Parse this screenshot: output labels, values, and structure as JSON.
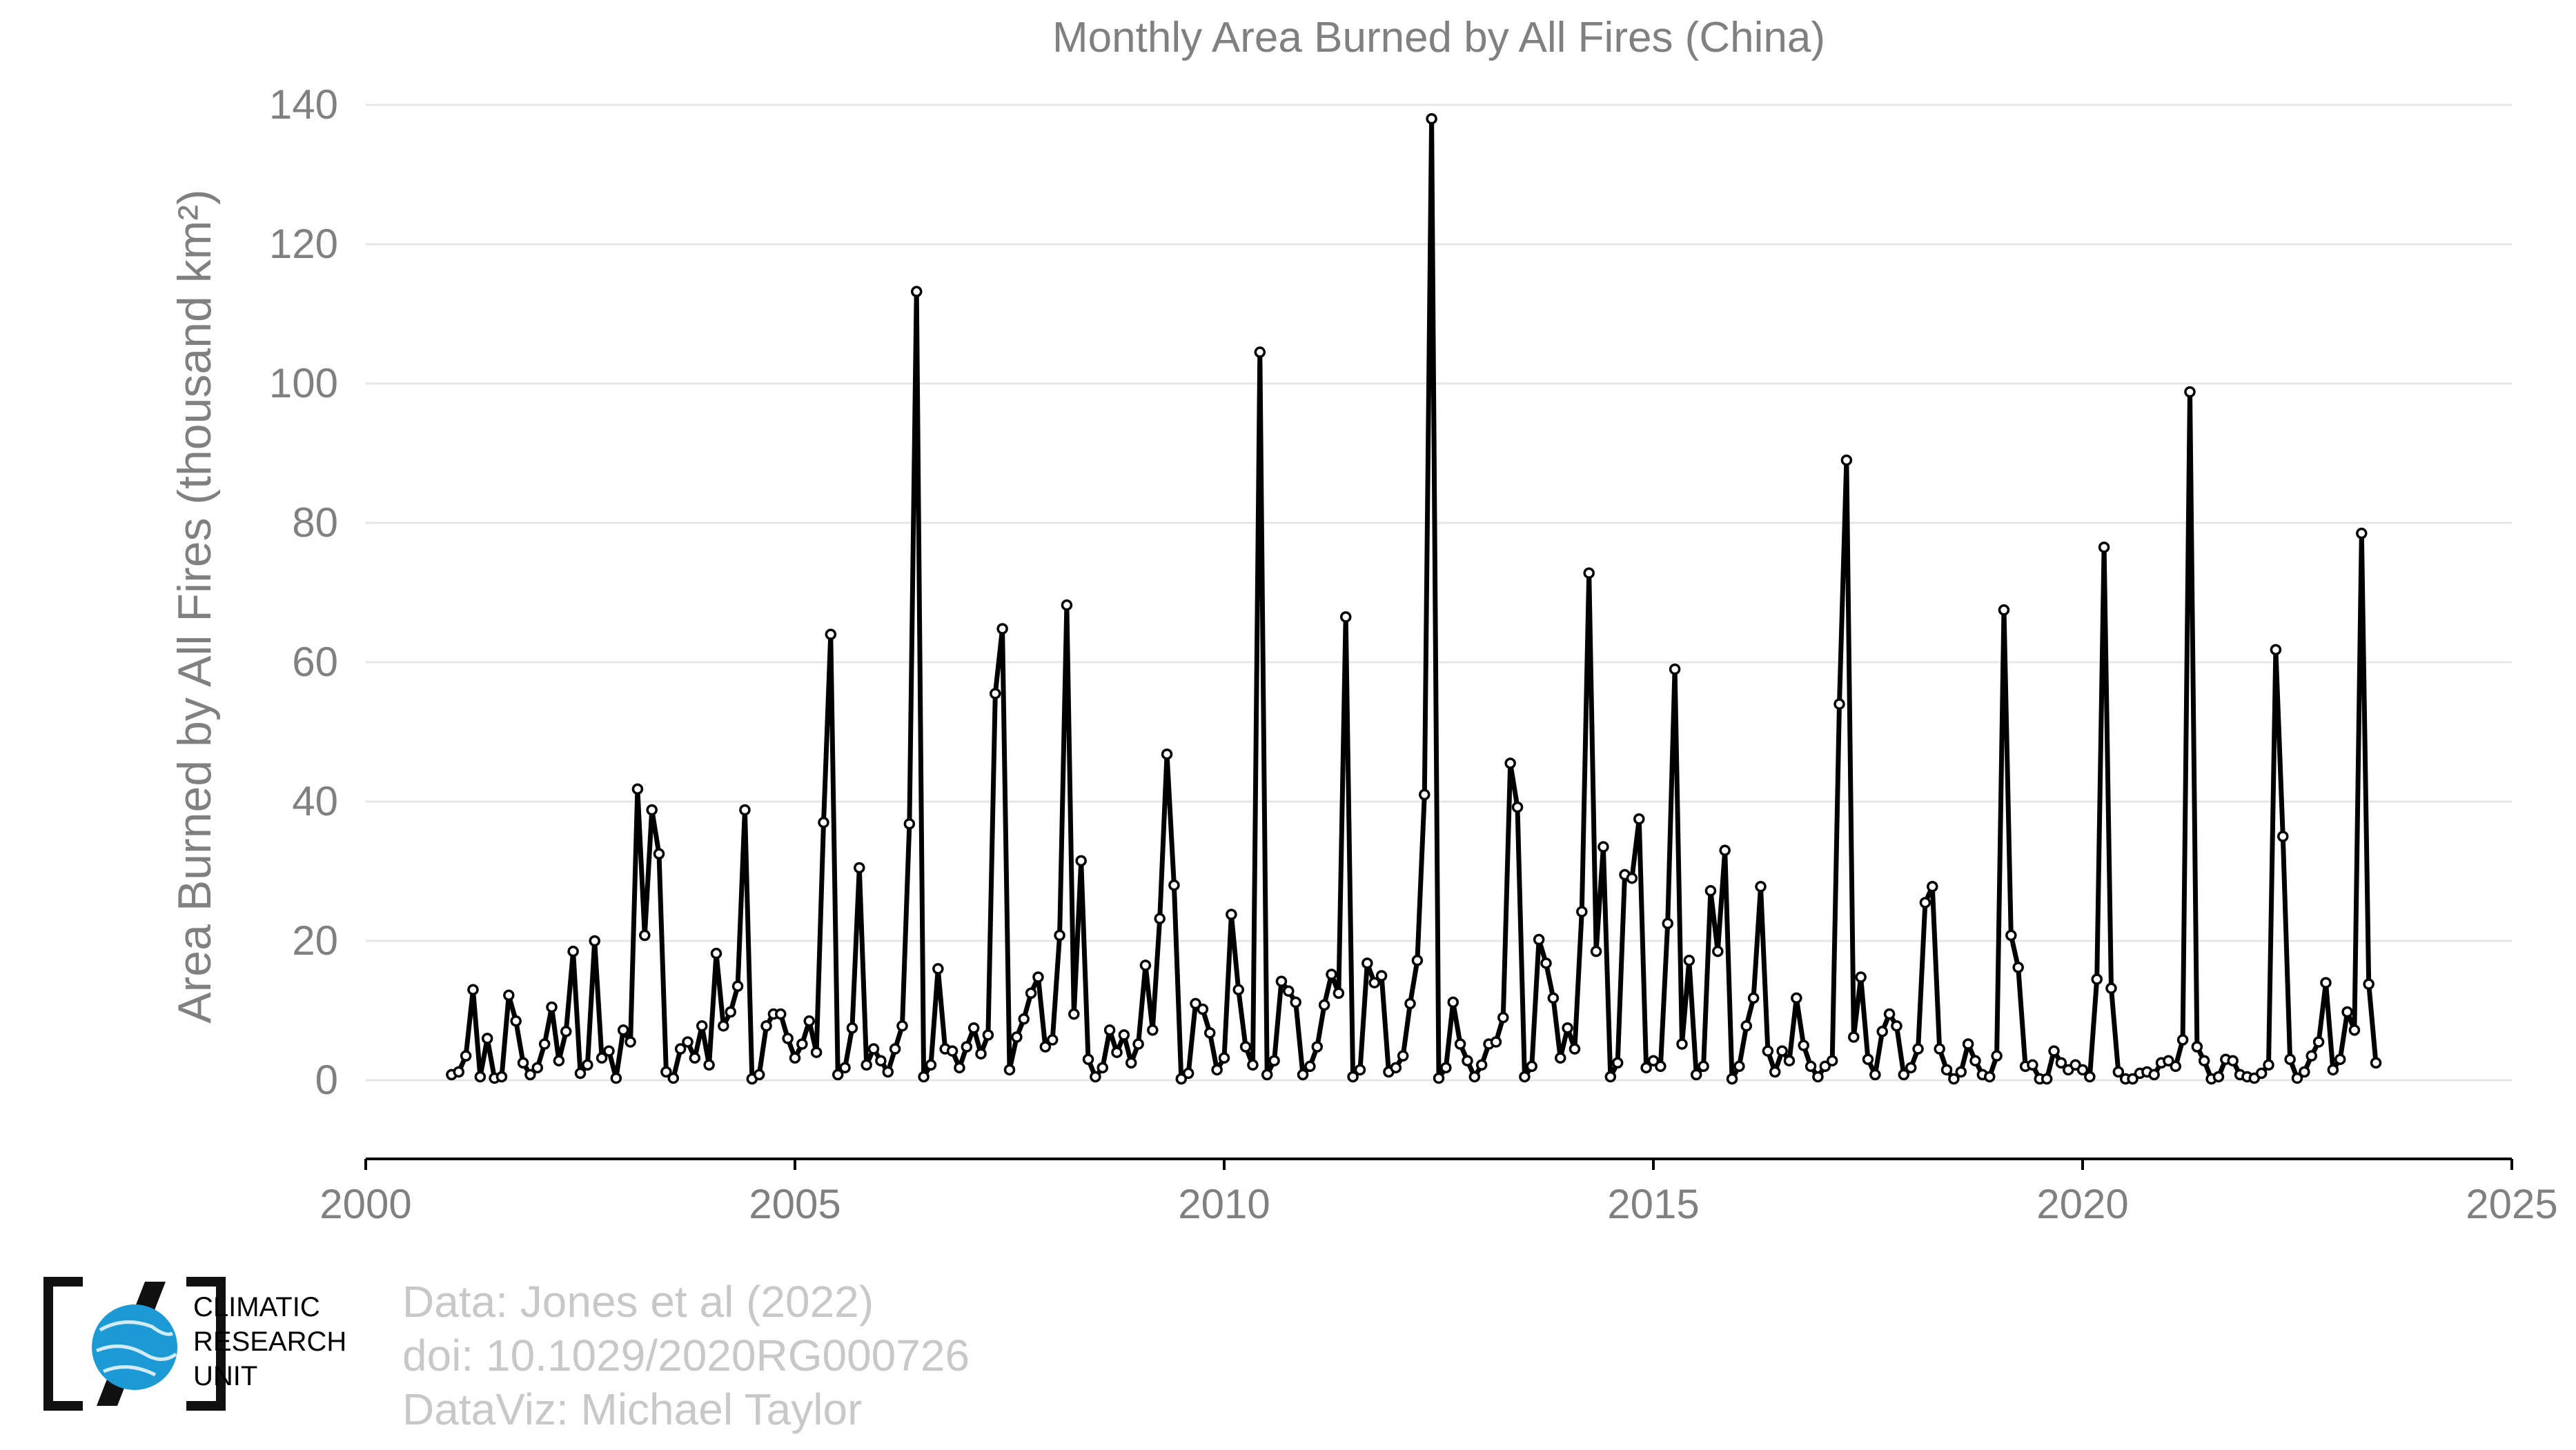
{
  "chart_data": {
    "type": "line",
    "title": "Monthly Area Burned by All Fires (China)",
    "ylabel": "Area Burned by All Fires (thousand km²)",
    "xlabel": "",
    "xlim": [
      2000,
      2025
    ],
    "ylim": [
      -11,
      140
    ],
    "x_ticks": [
      "2000",
      "2005",
      "2010",
      "2015",
      "2020",
      "2025"
    ],
    "y_ticks": [
      "0",
      "20",
      "40",
      "60",
      "80",
      "100",
      "120",
      "140"
    ],
    "grid": "horizontal",
    "series": [
      {
        "start_year": 2001,
        "start_month": 1,
        "values": [
          0.8,
          1.2,
          3.5,
          13.0,
          0.5,
          6.0,
          0.3,
          0.5,
          12.2,
          8.5,
          2.5,
          0.8,
          1.8,
          5.2,
          10.5,
          2.8,
          7.0,
          18.5,
          1.0,
          2.2,
          20.0,
          3.2,
          4.2,
          0.3,
          7.2,
          5.5,
          41.8,
          20.8,
          38.8,
          32.5,
          1.2,
          0.3,
          4.5,
          5.5,
          3.2,
          7.8,
          2.2,
          18.2,
          7.8,
          9.8,
          13.5,
          38.8,
          0.2,
          0.8,
          7.8,
          9.5,
          9.5,
          6.0,
          3.2,
          5.2,
          8.5,
          4.0,
          37.0,
          64.0,
          0.8,
          1.8,
          7.5,
          30.5,
          2.2,
          4.5,
          2.8,
          1.2,
          4.5,
          7.8,
          36.8,
          113.2,
          0.5,
          2.2,
          16.0,
          4.5,
          4.2,
          1.8,
          4.8,
          7.5,
          3.8,
          6.5,
          55.5,
          64.8,
          1.5,
          6.2,
          8.8,
          12.5,
          14.8,
          4.8,
          5.8,
          20.8,
          68.2,
          9.5,
          31.5,
          3.0,
          0.5,
          1.8,
          7.2,
          4.0,
          6.5,
          2.5,
          5.2,
          16.5,
          7.2,
          23.2,
          46.8,
          28.0,
          0.2,
          1.0,
          11.0,
          10.2,
          6.8,
          1.5,
          3.2,
          23.8,
          13.0,
          4.8,
          2.2,
          104.5,
          0.8,
          2.8,
          14.2,
          12.8,
          11.2,
          0.8,
          2.0,
          4.8,
          10.8,
          15.2,
          12.5,
          66.5,
          0.5,
          1.5,
          16.8,
          14.0,
          15.0,
          1.2,
          1.8,
          3.5,
          11.0,
          17.2,
          41.0,
          138.0,
          0.3,
          1.8,
          11.2,
          5.2,
          2.8,
          0.5,
          2.2,
          5.2,
          5.5,
          9.0,
          45.5,
          39.2,
          0.5,
          2.0,
          20.2,
          16.8,
          11.8,
          3.2,
          7.5,
          4.5,
          24.2,
          72.8,
          18.5,
          33.5,
          0.5,
          2.5,
          29.5,
          29.0,
          37.5,
          1.8,
          2.8,
          2.0,
          22.5,
          59.0,
          5.2,
          17.2,
          0.8,
          2.0,
          27.2,
          18.5,
          33.0,
          0.2,
          2.0,
          7.8,
          11.8,
          27.8,
          4.2,
          1.2,
          4.2,
          2.8,
          11.8,
          5.0,
          2.0,
          0.5,
          2.0,
          2.8,
          54.0,
          89.0,
          6.2,
          14.8,
          3.0,
          0.8,
          7.0,
          9.5,
          7.8,
          0.8,
          1.8,
          4.5,
          25.5,
          27.8,
          4.5,
          1.5,
          0.2,
          1.2,
          5.2,
          2.8,
          0.8,
          0.5,
          3.5,
          67.5,
          20.8,
          16.2,
          2.0,
          2.2,
          0.2,
          0.2,
          4.2,
          2.5,
          1.5,
          2.2,
          1.5,
          0.5,
          14.5,
          76.5,
          13.2,
          1.2,
          0.2,
          0.2,
          1.0,
          1.2,
          0.8,
          2.5,
          2.8,
          2.0,
          5.8,
          98.8,
          4.8,
          2.8,
          0.2,
          0.5,
          3.0,
          2.8,
          0.8,
          0.5,
          0.3,
          1.0,
          2.2,
          61.8,
          35.0,
          3.0,
          0.3,
          1.2,
          3.5,
          5.5,
          14.0,
          1.5,
          3.0,
          9.8,
          7.2,
          78.5,
          13.8,
          2.5
        ]
      }
    ]
  },
  "credits": {
    "line1": "Data: Jones et al (2022)",
    "line2": "doi: 10.1029/2020RG000726",
    "line3": "DataViz: Michael Taylor"
  },
  "logo": {
    "line1": "CLIMATIC",
    "line2": "RESEARCH",
    "line3": "UNIT",
    "color": "#1b9ad6"
  }
}
